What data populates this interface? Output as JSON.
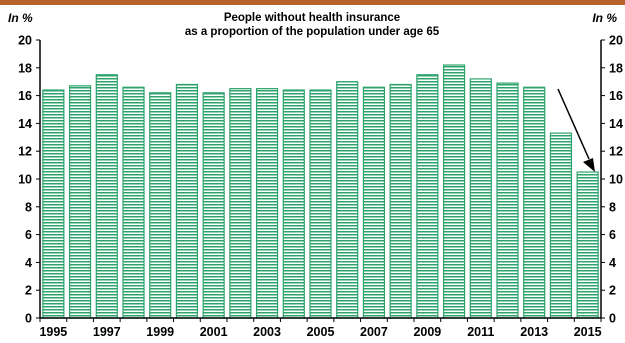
{
  "chart_data": {
    "type": "bar",
    "title_line1": "People without health insurance",
    "title_line2": "as a proportion of the population under age 65",
    "ylabel_left": "In %",
    "ylabel_right": "In %",
    "categories": [
      "1995",
      "1996",
      "1997",
      "1998",
      "1999",
      "2000",
      "2001",
      "2002",
      "2003",
      "2004",
      "2005",
      "2006",
      "2007",
      "2008",
      "2009",
      "2010",
      "2011",
      "2012",
      "2013",
      "2014",
      "2015"
    ],
    "x_tick_labels": [
      "1995",
      "1997",
      "1999",
      "2001",
      "2003",
      "2005",
      "2007",
      "2009",
      "2011",
      "2013",
      "2015"
    ],
    "values": [
      16.4,
      16.7,
      17.5,
      16.6,
      16.2,
      16.8,
      16.2,
      16.5,
      16.5,
      16.4,
      16.4,
      17.0,
      16.6,
      16.8,
      17.5,
      18.2,
      17.2,
      16.9,
      16.6,
      13.3,
      10.5
    ],
    "ylim": [
      0,
      20
    ],
    "yticks": [
      0,
      2,
      4,
      6,
      8,
      10,
      12,
      14,
      16,
      18,
      20
    ],
    "grid": false,
    "annotation": "arrow pointing down to 2015 bar",
    "colors": {
      "top_bar": "#b8632c",
      "bar_fill": "#2ca36b",
      "bar_hatch": "#ffffff",
      "axis": "#000000"
    }
  }
}
